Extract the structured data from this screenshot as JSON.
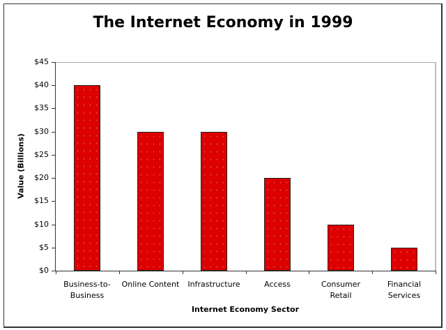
{
  "chart_data": {
    "type": "bar",
    "title": "The Internet Economy in 1999",
    "xlabel": "Internet Economy Sector",
    "ylabel": "Value (Billions)",
    "categories": [
      "Business-to-Business",
      "Online Content",
      "Infrastructure",
      "Access",
      "Consumer Retail",
      "Financial Services"
    ],
    "category_labels_display": [
      "Business-to-\nBusiness",
      "Online Content",
      "Infrastructure",
      "Access",
      "Consumer\nRetail",
      "Financial\nServices"
    ],
    "values": [
      40,
      30,
      30,
      20,
      10,
      5
    ],
    "ylim": [
      0,
      45
    ],
    "yticks": [
      "$0",
      "$5",
      "$10",
      "$15",
      "$20",
      "$25",
      "$30",
      "$35",
      "$40",
      "$45"
    ],
    "grid": false,
    "legend": null,
    "bar_color": "#dd0000"
  }
}
